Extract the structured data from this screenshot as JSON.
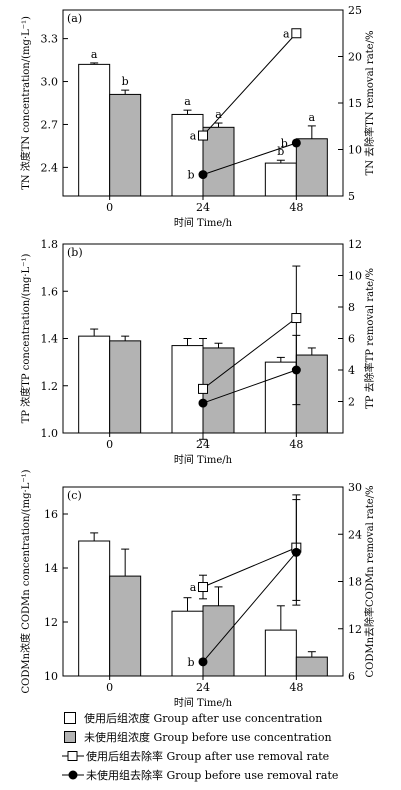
{
  "chart_data": [
    {
      "type": "bar",
      "panel_label": "(a)",
      "categories": [
        "0",
        "24",
        "48"
      ],
      "xlabel": "时间 Time/h",
      "ylabel": "TN 浓度TN concentration/(mg·L⁻¹)",
      "y2label": "TN 去除率TN removal rate/%",
      "ylim": [
        2.2,
        3.5
      ],
      "yticks": [
        "2.4",
        "2.7",
        "3.0",
        "3.3"
      ],
      "y2lim": [
        5,
        25
      ],
      "y2ticks": [
        "5",
        "10",
        "15",
        "20",
        "25"
      ],
      "series": [
        {
          "name": "使用后组浓度 Group after use concentration",
          "values": [
            3.12,
            2.77,
            2.43
          ],
          "errors": [
            0.01,
            0.03,
            0.02
          ],
          "labels": [
            "a",
            "a",
            "b"
          ],
          "color": "#ffffff"
        },
        {
          "name": "未使用组浓度 Group before use concentration",
          "values": [
            2.91,
            2.68,
            2.6
          ],
          "errors": [
            0.03,
            0.03,
            0.09
          ],
          "labels": [
            "b",
            "a",
            "a"
          ],
          "color": "#b3b3b3"
        }
      ],
      "line_series": [
        {
          "name": "使用后组去除率 Group after use removal rate",
          "x": [
            "24",
            "48"
          ],
          "values": [
            11.5,
            22.5
          ],
          "errors": [
            0,
            0
          ],
          "labels": [
            "a",
            "a"
          ]
        },
        {
          "name": "未使用组去除率 Group before use removal rate",
          "x": [
            "24",
            "48"
          ],
          "values": [
            7.3,
            10.7
          ],
          "errors": [
            0,
            0
          ],
          "labels": [
            "b",
            "b"
          ]
        }
      ]
    },
    {
      "type": "bar",
      "panel_label": "(b)",
      "categories": [
        "0",
        "24",
        "48"
      ],
      "xlabel": "时间 Time/h",
      "ylabel": "TP 浓度TP concentration/(mg·L⁻¹)",
      "y2label": "TP 去除率TP removal rate/%",
      "ylim": [
        1.0,
        1.8
      ],
      "yticks": [
        "1.0",
        "1.2",
        "1.4",
        "1.6",
        "1.8"
      ],
      "y2lim": [
        0,
        12
      ],
      "y2ticks": [
        "2",
        "4",
        "6",
        "8",
        "10",
        "12"
      ],
      "series": [
        {
          "name": "使用后组浓度 Group after use concentration",
          "values": [
            1.41,
            1.37,
            1.3
          ],
          "errors": [
            0.03,
            0.03,
            0.02
          ],
          "color": "#ffffff"
        },
        {
          "name": "未使用组浓度 Group before use concentration",
          "values": [
            1.39,
            1.36,
            1.33
          ],
          "errors": [
            0.02,
            0.02,
            0.03
          ],
          "color": "#b3b3b3"
        }
      ],
      "line_series": [
        {
          "name": "使用后组去除率 Group after use removal rate",
          "x": [
            "24",
            "48"
          ],
          "values": [
            2.8,
            7.3
          ],
          "errors": [
            3.2,
            3.3
          ]
        },
        {
          "name": "未使用组去除率 Group before use removal rate",
          "x": [
            "24",
            "48"
          ],
          "values": [
            1.9,
            4.0
          ],
          "errors": [
            0.0,
            2.2
          ]
        }
      ]
    },
    {
      "type": "bar",
      "panel_label": "(c)",
      "categories": [
        "0",
        "24",
        "48"
      ],
      "xlabel": "时间 Time/h",
      "ylabel": "CODMn浓度 CODMn concentration/(mg·L⁻¹)",
      "y2label": "CODMn去除率CODMn removal rate/%",
      "ylim": [
        10,
        17
      ],
      "yticks": [
        "10",
        "12",
        "14",
        "16"
      ],
      "y2lim": [
        6,
        30
      ],
      "y2ticks": [
        "6",
        "12",
        "18",
        "24",
        "30"
      ],
      "series": [
        {
          "name": "使用后组浓度 Group after use concentration",
          "values": [
            15.0,
            12.4,
            11.7
          ],
          "errors": [
            0.3,
            0.5,
            0.9
          ],
          "color": "#ffffff"
        },
        {
          "name": "未使用组浓度 Group before use concentration",
          "values": [
            13.7,
            12.6,
            10.7
          ],
          "errors": [
            1.0,
            0.7,
            0.2
          ],
          "color": "#b3b3b3"
        }
      ],
      "line_series": [
        {
          "name": "使用后组去除率 Group after use removal rate",
          "x": [
            "24",
            "48"
          ],
          "values": [
            17.3,
            22.3
          ],
          "errors": [
            1.5,
            6.7
          ],
          "labels": [
            "a",
            ""
          ]
        },
        {
          "name": "未使用组去除率 Group before use removal rate",
          "x": [
            "24",
            "48"
          ],
          "values": [
            7.8,
            21.7
          ],
          "errors": [
            0,
            6.7
          ],
          "labels": [
            "b",
            ""
          ]
        }
      ]
    }
  ],
  "legend": [
    {
      "marker": "box-white",
      "label": "使用后组浓度 Group after use concentration"
    },
    {
      "marker": "box-gray",
      "label": "未使用组浓度 Group before use concentration"
    },
    {
      "marker": "line-square",
      "label": "使用后组去除率 Group after use removal rate"
    },
    {
      "marker": "line-circle",
      "label": "未使用组去除率 Group before use removal rate"
    }
  ]
}
